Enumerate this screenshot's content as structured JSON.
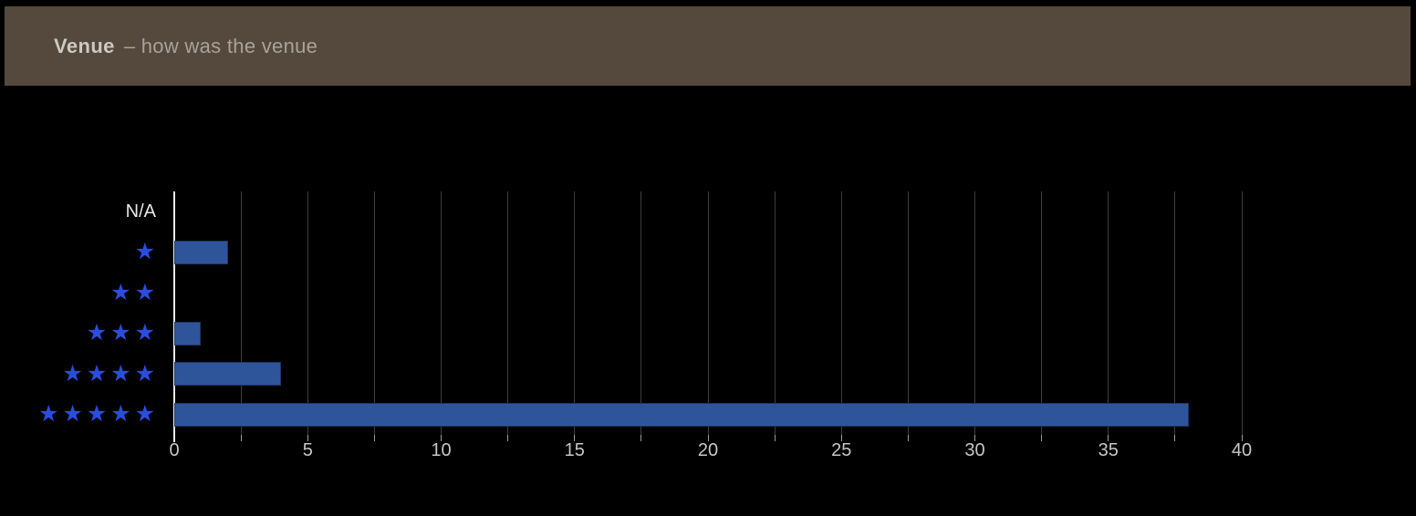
{
  "header": {
    "title": "Venue",
    "subtitle": "– how was the venue",
    "bg_color": "#54493C",
    "title_color": "#CDC9C3",
    "subtitle_color": "#A8A29C"
  },
  "chart_data": {
    "type": "bar",
    "orientation": "horizontal",
    "title": "Venue – how was the venue",
    "categories": [
      "N/A",
      "1 star",
      "2 stars",
      "3 stars",
      "4 stars",
      "5 stars"
    ],
    "star_counts": [
      0,
      1,
      2,
      3,
      4,
      5
    ],
    "values": [
      0,
      2,
      0,
      1,
      4,
      38
    ],
    "xlabel": "",
    "ylabel": "",
    "xlim": [
      0,
      40
    ],
    "x_major_ticks": [
      0,
      5,
      10,
      15,
      20,
      25,
      30,
      35,
      40
    ],
    "x_minor_tick_interval": 2.5,
    "grid": "vertical-gridlines-every-2.5",
    "legend": "none",
    "star_icon": "★",
    "colors": {
      "bar": "#2E5599",
      "star": "#2B4DDF",
      "axis_line": "#F2F2F2",
      "gridline": "#3D3D3D",
      "tick": "#999999",
      "tick_label": "#C6C6C6",
      "category_label": "#E8E8E8",
      "background": "#000000"
    }
  }
}
